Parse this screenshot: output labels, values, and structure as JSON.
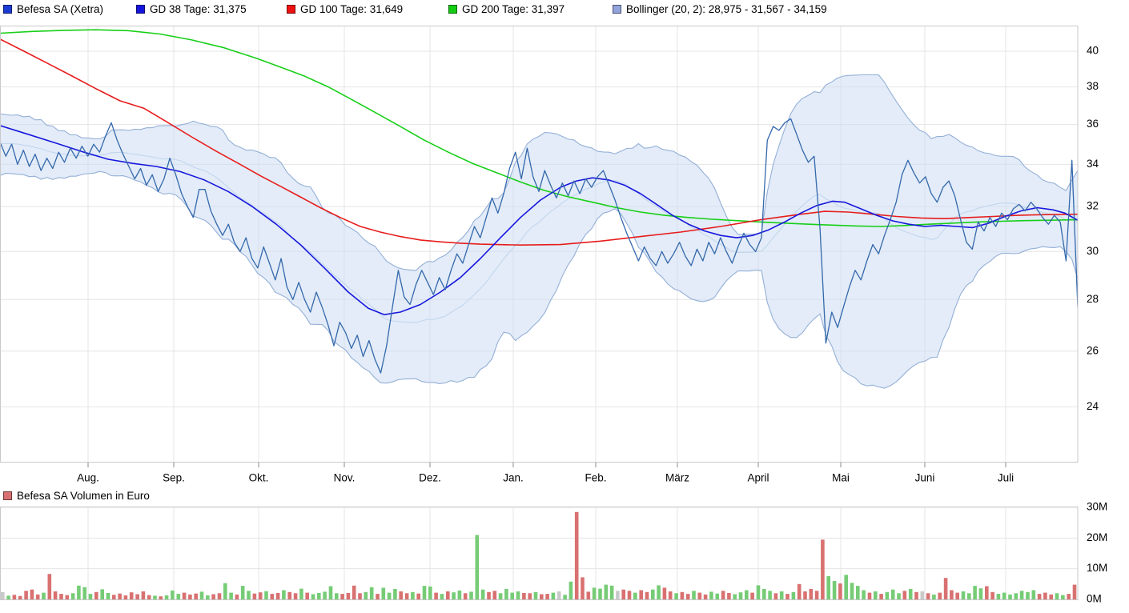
{
  "title": "Befesa SA (Xetra)",
  "legend": {
    "items": [
      {
        "label": "Befesa SA (Xetra)",
        "color": "#1c3bd4",
        "series": "price"
      },
      {
        "label": "GD 38 Tage: 31,375",
        "color": "#1414dd",
        "series": "gd38"
      },
      {
        "label": "GD 100 Tage: 31,649",
        "color": "#ee1111",
        "series": "gd100"
      },
      {
        "label": "GD 200 Tage: 31,397",
        "color": "#15cc15",
        "series": "gd200"
      },
      {
        "label": "Bollinger (20, 2): 28,975 - 31,567 - 34,159",
        "color": "#93a4dc",
        "series": "bollinger"
      }
    ]
  },
  "volume_legend": {
    "label": "Befesa SA Volumen in Euro",
    "color": "#d97070"
  },
  "axes": {
    "y_ticks": [
      40,
      38,
      36,
      34,
      32,
      30,
      28,
      26,
      24
    ],
    "y_scale": "log",
    "months": [
      "Aug.",
      "Sep.",
      "Okt.",
      "Nov.",
      "Dez.",
      "Jan.",
      "Feb.",
      "März",
      "April",
      "Mai",
      "Juni",
      "Juli"
    ],
    "volume_ticks": [
      {
        "label": "30M",
        "value": 30
      },
      {
        "label": "20M",
        "value": 20
      },
      {
        "label": "10M",
        "value": 10
      },
      {
        "label": "0M",
        "value": 0
      }
    ]
  },
  "chart_data": {
    "type": [
      "line",
      "area",
      "bar"
    ],
    "title": "Befesa SA (Xetra) — 1 Jahr, Kurs in EUR mit GD38/GD100/GD200 und Bollinger (20,2), Volumen in Euro",
    "ylim": [
      22.2,
      41.6
    ],
    "volume_ylim_millions": [
      0,
      30
    ],
    "price_last": 27.7,
    "gd38_last": "31,375",
    "gd100_last": "31,649",
    "gd200_last": "31,397",
    "bollinger_period": 20,
    "bollinger_stddev": 2,
    "bollinger_last": {
      "lower": "28,975",
      "middle": "31,567",
      "upper": "34,159"
    },
    "price_pre_window": [
      33.8,
      35.4,
      34.2,
      35.8,
      34.6,
      36.2,
      35.0,
      36.4,
      35.2,
      36.0,
      34.6,
      35.8,
      34.3,
      35.6,
      34.0,
      35.2,
      33.8,
      34.8,
      34.4
    ],
    "price_eur": [
      35.1,
      34.4,
      35.0,
      34.0,
      34.7,
      33.9,
      34.5,
      33.7,
      34.3,
      33.8,
      34.6,
      34.1,
      34.8,
      34.3,
      34.9,
      34.4,
      35.0,
      34.6,
      35.4,
      36.1,
      35.2,
      34.5,
      33.9,
      33.3,
      33.8,
      33.0,
      33.5,
      32.7,
      33.3,
      34.3,
      33.5,
      32.6,
      32.0,
      31.5,
      32.8,
      32.8,
      31.8,
      31.2,
      30.7,
      31.2,
      30.4,
      30.0,
      30.6,
      29.7,
      29.3,
      30.2,
      29.5,
      28.8,
      29.7,
      28.5,
      28.0,
      28.7,
      28.0,
      27.5,
      28.3,
      27.7,
      27.0,
      26.2,
      27.1,
      26.7,
      26.1,
      26.6,
      25.8,
      26.4,
      25.7,
      25.2,
      26.2,
      27.7,
      29.2,
      28.1,
      27.8,
      28.6,
      29.2,
      28.7,
      28.2,
      28.9,
      28.4,
      29.2,
      29.9,
      29.5,
      30.3,
      31.1,
      30.6,
      31.5,
      32.4,
      31.7,
      32.6,
      33.8,
      34.6,
      33.3,
      34.8,
      33.4,
      32.7,
      33.7,
      33.0,
      32.4,
      33.1,
      32.5,
      33.2,
      32.6,
      33.3,
      32.9,
      33.4,
      33.7,
      33.0,
      32.3,
      31.5,
      30.8,
      30.2,
      29.6,
      30.2,
      29.7,
      29.4,
      30.0,
      29.5,
      29.9,
      30.4,
      29.8,
      29.4,
      30.1,
      29.6,
      30.4,
      29.9,
      30.6,
      30.0,
      29.5,
      30.2,
      30.8,
      30.3,
      30.0,
      30.6,
      35.2,
      35.9,
      35.7,
      36.1,
      36.3,
      35.5,
      34.7,
      34.1,
      34.4,
      31.0,
      26.3,
      27.5,
      26.9,
      27.7,
      28.5,
      29.2,
      28.8,
      29.6,
      30.3,
      29.9,
      30.7,
      31.4,
      32.2,
      33.5,
      34.2,
      33.6,
      33.1,
      33.4,
      32.6,
      32.2,
      32.9,
      33.2,
      32.5,
      31.4,
      30.4,
      30.1,
      31.3,
      30.9,
      31.5,
      31.1,
      31.7,
      31.4,
      31.9,
      32.1,
      31.8,
      32.2,
      31.9,
      31.5,
      31.2,
      31.6,
      31.3,
      29.6,
      34.2,
      27.7
    ],
    "gd38": [
      [
        0,
        35.95
      ],
      [
        35,
        35.5
      ],
      [
        70,
        35.05
      ],
      [
        105,
        34.6
      ],
      [
        135,
        34.25
      ],
      [
        165,
        34.05
      ],
      [
        195,
        33.9
      ],
      [
        225,
        33.65
      ],
      [
        255,
        33.25
      ],
      [
        285,
        32.7
      ],
      [
        315,
        32.0
      ],
      [
        345,
        31.2
      ],
      [
        375,
        30.3
      ],
      [
        405,
        29.3
      ],
      [
        435,
        28.3
      ],
      [
        460,
        27.65
      ],
      [
        480,
        27.4
      ],
      [
        500,
        27.5
      ],
      [
        525,
        27.8
      ],
      [
        550,
        28.3
      ],
      [
        575,
        28.9
      ],
      [
        600,
        29.7
      ],
      [
        625,
        30.6
      ],
      [
        650,
        31.5
      ],
      [
        675,
        32.3
      ],
      [
        700,
        32.9
      ],
      [
        720,
        33.2
      ],
      [
        740,
        33.35
      ],
      [
        760,
        33.25
      ],
      [
        780,
        33.0
      ],
      [
        800,
        32.6
      ],
      [
        820,
        32.1
      ],
      [
        840,
        31.6
      ],
      [
        860,
        31.2
      ],
      [
        880,
        30.9
      ],
      [
        900,
        30.7
      ],
      [
        920,
        30.6
      ],
      [
        940,
        30.7
      ],
      [
        960,
        30.95
      ],
      [
        980,
        31.3
      ],
      [
        1000,
        31.7
      ],
      [
        1020,
        32.05
      ],
      [
        1040,
        32.25
      ],
      [
        1055,
        32.2
      ],
      [
        1075,
        31.9
      ],
      [
        1095,
        31.6
      ],
      [
        1115,
        31.35
      ],
      [
        1135,
        31.2
      ],
      [
        1155,
        31.1
      ],
      [
        1175,
        31.15
      ],
      [
        1195,
        31.1
      ],
      [
        1215,
        31.05
      ],
      [
        1235,
        31.25
      ],
      [
        1255,
        31.55
      ],
      [
        1275,
        31.8
      ],
      [
        1295,
        31.95
      ],
      [
        1315,
        31.85
      ],
      [
        1330,
        31.7
      ],
      [
        1346,
        31.38
      ]
    ],
    "gd100": [
      [
        0,
        40.7
      ],
      [
        30,
        40.0
      ],
      [
        60,
        39.3
      ],
      [
        90,
        38.6
      ],
      [
        120,
        37.9
      ],
      [
        150,
        37.25
      ],
      [
        180,
        36.85
      ],
      [
        210,
        36.1
      ],
      [
        240,
        35.35
      ],
      [
        270,
        34.65
      ],
      [
        300,
        34.0
      ],
      [
        325,
        33.45
      ],
      [
        350,
        32.95
      ],
      [
        375,
        32.45
      ],
      [
        400,
        31.95
      ],
      [
        425,
        31.5
      ],
      [
        450,
        31.1
      ],
      [
        475,
        30.85
      ],
      [
        500,
        30.65
      ],
      [
        525,
        30.5
      ],
      [
        550,
        30.42
      ],
      [
        575,
        30.36
      ],
      [
        600,
        30.32
      ],
      [
        650,
        30.28
      ],
      [
        700,
        30.3
      ],
      [
        750,
        30.45
      ],
      [
        800,
        30.65
      ],
      [
        850,
        30.85
      ],
      [
        900,
        31.1
      ],
      [
        950,
        31.4
      ],
      [
        1000,
        31.65
      ],
      [
        1030,
        31.78
      ],
      [
        1060,
        31.75
      ],
      [
        1090,
        31.65
      ],
      [
        1120,
        31.55
      ],
      [
        1150,
        31.48
      ],
      [
        1180,
        31.45
      ],
      [
        1210,
        31.5
      ],
      [
        1240,
        31.55
      ],
      [
        1270,
        31.6
      ],
      [
        1300,
        31.63
      ],
      [
        1346,
        31.65
      ]
    ],
    "gd200": [
      [
        0,
        41.05
      ],
      [
        40,
        41.15
      ],
      [
        80,
        41.22
      ],
      [
        120,
        41.25
      ],
      [
        160,
        41.2
      ],
      [
        200,
        41.0
      ],
      [
        240,
        40.65
      ],
      [
        280,
        40.2
      ],
      [
        320,
        39.6
      ],
      [
        350,
        39.1
      ],
      [
        380,
        38.6
      ],
      [
        410,
        38.0
      ],
      [
        440,
        37.3
      ],
      [
        470,
        36.6
      ],
      [
        500,
        35.9
      ],
      [
        530,
        35.2
      ],
      [
        560,
        34.6
      ],
      [
        590,
        34.05
      ],
      [
        620,
        33.6
      ],
      [
        650,
        33.15
      ],
      [
        680,
        32.75
      ],
      [
        710,
        32.45
      ],
      [
        740,
        32.2
      ],
      [
        770,
        31.95
      ],
      [
        800,
        31.75
      ],
      [
        830,
        31.6
      ],
      [
        860,
        31.5
      ],
      [
        890,
        31.42
      ],
      [
        920,
        31.36
      ],
      [
        950,
        31.3
      ],
      [
        980,
        31.25
      ],
      [
        1010,
        31.2
      ],
      [
        1040,
        31.16
      ],
      [
        1070,
        31.12
      ],
      [
        1100,
        31.1
      ],
      [
        1130,
        31.14
      ],
      [
        1160,
        31.2
      ],
      [
        1190,
        31.25
      ],
      [
        1220,
        31.3
      ],
      [
        1250,
        31.33
      ],
      [
        1280,
        31.36
      ],
      [
        1310,
        31.38
      ],
      [
        1346,
        31.4
      ]
    ],
    "volume_millions": [
      2.4,
      1.2,
      1.5,
      1.1,
      2.8,
      3.2,
      1.6,
      2.2,
      8.3,
      2.6,
      1.8,
      1.4,
      2.0,
      4.5,
      4.0,
      1.8,
      2.4,
      3.3,
      2.1,
      1.5,
      1.9,
      1.3,
      2.3,
      1.7,
      2.6,
      1.4,
      1.2,
      1.0,
      1.3,
      2.9,
      1.8,
      2.2,
      1.6,
      1.9,
      2.5,
      1.3,
      1.7,
      2.0,
      5.3,
      2.2,
      1.6,
      4.4,
      2.8,
      1.9,
      2.3,
      2.7,
      1.8,
      2.1,
      3.0,
      2.4,
      2.0,
      3.5,
      2.2,
      1.7,
      2.1,
      2.5,
      4.3,
      2.0,
      1.8,
      2.1,
      4.5,
      2.0,
      2.4,
      4.0,
      1.8,
      3.8,
      2.2,
      3.4,
      2.6,
      2.0,
      2.4,
      1.9,
      4.4,
      4.2,
      2.2,
      1.8,
      2.6,
      2.3,
      2.9,
      2.0,
      2.5,
      21.0,
      3.2,
      2.4,
      2.8,
      2.0,
      3.4,
      2.2,
      2.6,
      2.1,
      2.0,
      2.4,
      1.7,
      1.8,
      2.2,
      2.6,
      1.5,
      5.8,
      28.5,
      7.2,
      2.5,
      3.8,
      3.5,
      4.8,
      4.5,
      2.8,
      3.2,
      2.8,
      2.2,
      3.0,
      2.4,
      3.2,
      4.6,
      3.8,
      2.6,
      2.0,
      2.4,
      1.8,
      2.8,
      2.2,
      1.6,
      2.5,
      1.9,
      2.8,
      2.1,
      1.7,
      2.3,
      3.0,
      2.2,
      4.6,
      3.4,
      2.8,
      2.0,
      2.6,
      1.8,
      2.4,
      5.0,
      2.6,
      3.4,
      2.8,
      19.5,
      7.6,
      6.0,
      5.2,
      8.0,
      5.4,
      4.4,
      3.0,
      2.2,
      2.6,
      1.8,
      2.4,
      3.2,
      2.0,
      2.8,
      3.4,
      2.4,
      2.6,
      2.0,
      1.6,
      2.2,
      7.0,
      3.0,
      2.2,
      2.6,
      2.0,
      4.4,
      3.6,
      4.3,
      2.4,
      1.8,
      2.2,
      1.6,
      2.0,
      2.8,
      2.4,
      3.0,
      1.8,
      2.2,
      1.6,
      2.0,
      1.4,
      1.8,
      4.8,
      2.6
    ],
    "volume_colors": "ygrrrrrgrrrrggggrggrrrrrrrgrgggrrrggrrggrggrrgrrgrrgrgggggrrrrggrgggrrgrggrgrggrgggrrggggrrgrrgyggrrrggggyrrgrrggrrgrrgrrggrrgggrgggrgrgrrrrrggrggggrgrgggrgryrgrrrrggggrrgggggggrrrggrrr"
  },
  "colors": {
    "price_line": "#3468ab",
    "gd38_line": "#1717dd",
    "gd100_line": "#e81c1c",
    "gd200_line": "#17cf17",
    "boll_fill": "#ccdcf3",
    "boll_edge": "#94afd7",
    "boll_mid": "#c3d6ee",
    "vol_up": "#76cc76",
    "vol_down": "#d97171",
    "vol_neutral": "#c9c9c9",
    "grid": "#e4e4e4",
    "border": "#c9c9c9",
    "tick": "#8a8a8a",
    "text": "#000000"
  }
}
